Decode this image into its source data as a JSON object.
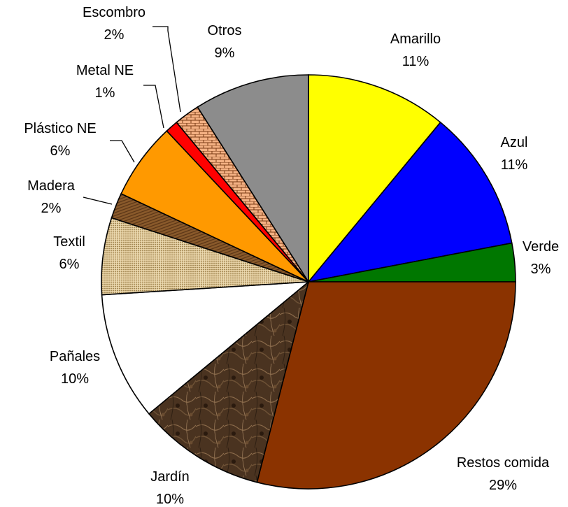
{
  "chart_data": {
    "type": "pie",
    "title": "",
    "slices": [
      {
        "name": "Amarillo",
        "pct_label": "11%",
        "value": 11,
        "color": "#ffff00",
        "fill": "solid"
      },
      {
        "name": "Azul",
        "pct_label": "11%",
        "value": 11,
        "color": "#0000ff",
        "fill": "solid"
      },
      {
        "name": "Verde",
        "pct_label": "3%",
        "value": 3,
        "color": "#007700",
        "fill": "solid"
      },
      {
        "name": "Restos comida",
        "pct_label": "29%",
        "value": 29,
        "color": "#8b3300",
        "fill": "solid"
      },
      {
        "name": "Jardín",
        "pct_label": "10%",
        "value": 10,
        "color": "#4a3320",
        "fill": "marble-texture"
      },
      {
        "name": "Pañales",
        "pct_label": "10%",
        "value": 10,
        "color": "#ffffff",
        "fill": "solid"
      },
      {
        "name": "Textil",
        "pct_label": "6%",
        "value": 6,
        "color": "#d9c08f",
        "fill": "burlap-texture"
      },
      {
        "name": "Madera",
        "pct_label": "2%",
        "value": 2,
        "color": "#8a5a2b",
        "fill": "wood-texture"
      },
      {
        "name": "Plástico NE",
        "pct_label": "6%",
        "value": 6,
        "color": "#ff9900",
        "fill": "solid"
      },
      {
        "name": "Metal NE",
        "pct_label": "1%",
        "value": 1,
        "color": "#ff0000",
        "fill": "solid"
      },
      {
        "name": "Escombro",
        "pct_label": "2%",
        "value": 2,
        "color": "#f4b183",
        "fill": "brick-pattern"
      },
      {
        "name": "Otros",
        "pct_label": "9%",
        "value": 9,
        "color": "#8c8c8c",
        "fill": "solid"
      }
    ]
  }
}
